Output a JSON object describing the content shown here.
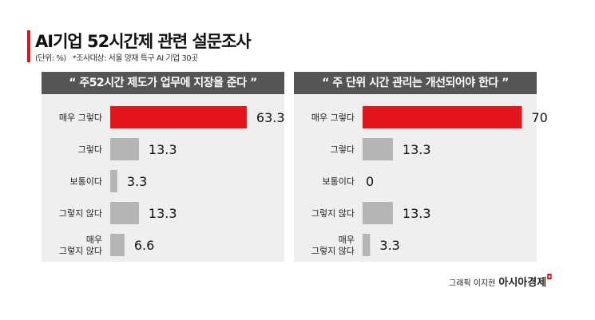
{
  "title": "AI기업 52시간제 관련 설문조사",
  "unit": "(단위: %)",
  "note": "*조사대상: 서울 양재 특구 AI 기업 30곳",
  "credit": {
    "author": "그래픽 이지현",
    "publisher": "아시아경제"
  },
  "colors": {
    "highlight": "#e3141b",
    "bar": "#b5b5b5",
    "header": "#555555",
    "panel": "#efefef"
  },
  "chart_data": [
    {
      "type": "bar",
      "orientation": "horizontal",
      "title": "“ 주52시간 제도가 업무에 지장을 준다 ”",
      "categories": [
        "매우 그렇다",
        "그렇다",
        "보통이다",
        "그렇지 않다",
        "매우\n그렇지 않다"
      ],
      "values": [
        63.3,
        13.3,
        3.3,
        13.3,
        6.6
      ],
      "value_labels": [
        "63.3",
        "13.3",
        "3.3",
        "13.3",
        "6.6"
      ],
      "highlight_index": 0
    },
    {
      "type": "bar",
      "orientation": "horizontal",
      "title": "“ 주 단위 시간 관리는 개선되어야 한다 ”",
      "categories": [
        "매우 그렇다",
        "그렇다",
        "보통이다",
        "그렇지 않다",
        "매우\n그렇지 않다"
      ],
      "values": [
        70,
        13.3,
        0,
        13.3,
        3.3
      ],
      "value_labels": [
        "70",
        "13.3",
        "0",
        "13.3",
        "3.3"
      ],
      "highlight_index": 0
    }
  ]
}
